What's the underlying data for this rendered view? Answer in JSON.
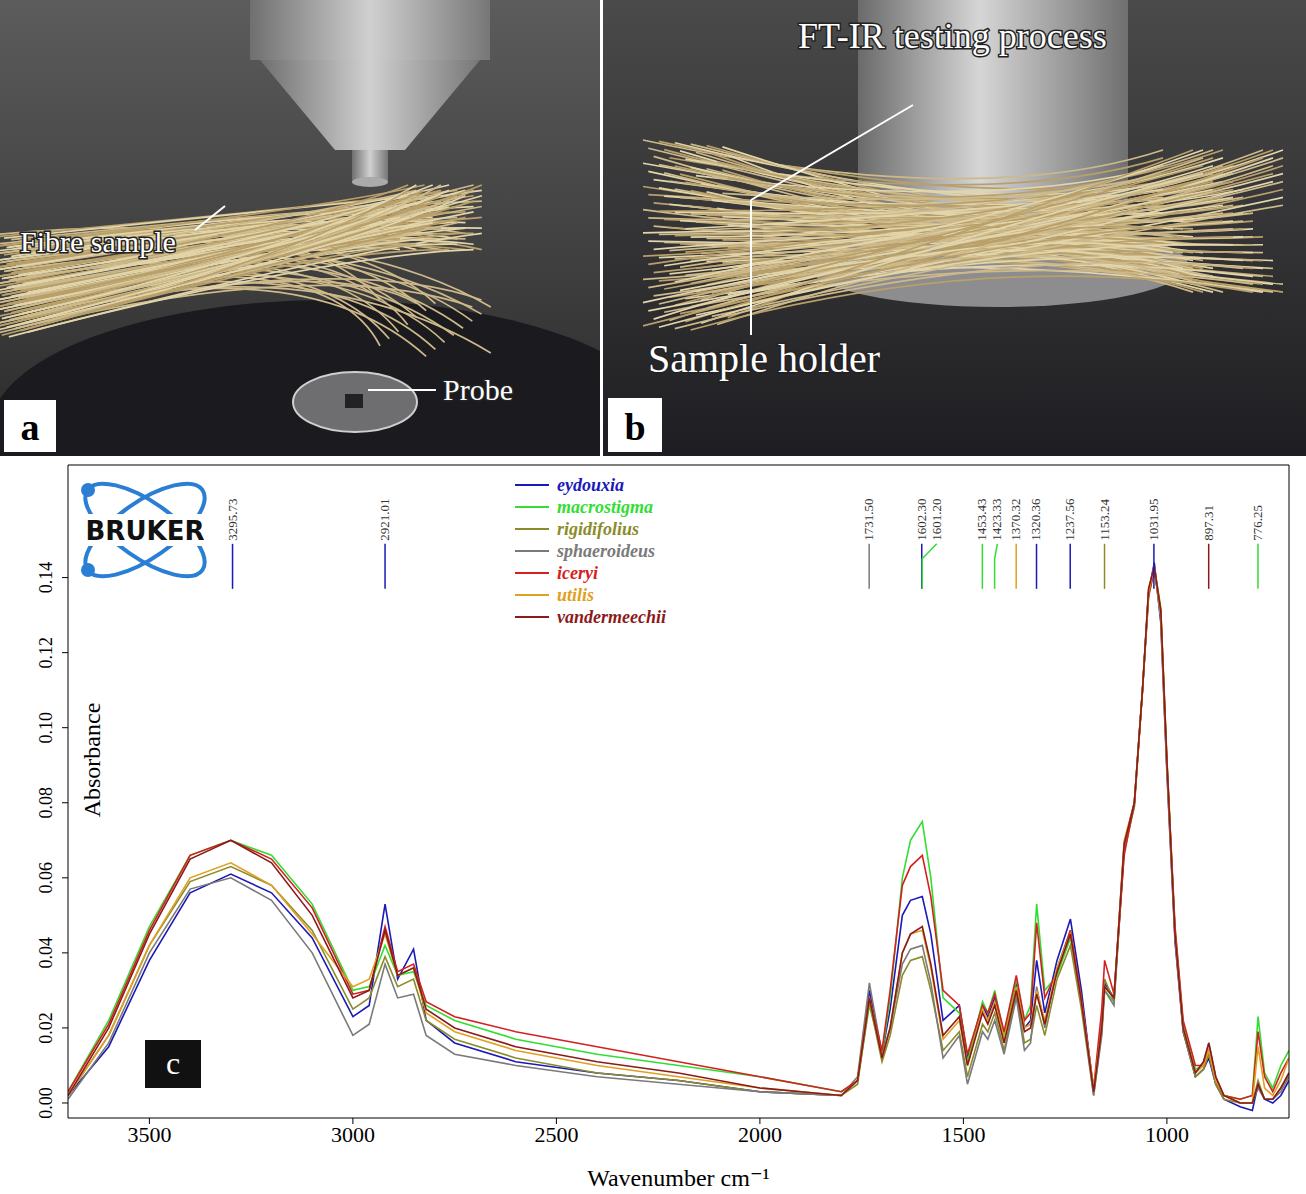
{
  "panels": [
    {
      "letter": "a",
      "labels": [
        "Fibre sample",
        "Probe"
      ]
    },
    {
      "letter": "b",
      "labels": [
        "FT-IR testing process",
        "Sample holder"
      ]
    }
  ],
  "chart_data": {
    "type": "line",
    "panel_letter": "c",
    "logo": "BRUKER",
    "x_label": "Wavenumber cm⁻¹",
    "y_label": "Absorbance",
    "grid": false,
    "legend": "top",
    "xlim": [
      3700,
      700
    ],
    "xticks": [
      3500,
      3000,
      2500,
      2000,
      1500,
      1000
    ],
    "ylim": [
      -0.004,
      0.17
    ],
    "yticks": [
      {
        "value": 0,
        "label": "0.00"
      },
      {
        "value": 0.02,
        "label": "0.02"
      },
      {
        "value": 0.04,
        "label": "0.04"
      },
      {
        "value": 0.06,
        "label": "0.06"
      },
      {
        "value": 0.08,
        "label": "0.08"
      },
      {
        "value": 0.1,
        "label": "0.10"
      },
      {
        "value": 0.12,
        "label": "0.12"
      },
      {
        "value": 0.14,
        "label": "0.14"
      }
    ],
    "x": [
      3700,
      3600,
      3500,
      3400,
      3300,
      3200,
      3100,
      3000,
      2960,
      2921,
      2890,
      2851,
      2820,
      2750,
      2600,
      2400,
      2200,
      2000,
      1800,
      1760,
      1731,
      1700,
      1680,
      1650,
      1630,
      1601,
      1580,
      1550,
      1510,
      1490,
      1453,
      1440,
      1423,
      1400,
      1370,
      1350,
      1335,
      1320,
      1300,
      1270,
      1237,
      1210,
      1180,
      1160,
      1153,
      1130,
      1105,
      1080,
      1060,
      1045,
      1031,
      1015,
      1000,
      980,
      960,
      930,
      910,
      897,
      880,
      860,
      820,
      790,
      776,
      760,
      740,
      720,
      700
    ],
    "series": [
      {
        "name": "eydouxia",
        "color": "#1a1ab8",
        "values": [
          0.002,
          0.015,
          0.038,
          0.056,
          0.061,
          0.056,
          0.044,
          0.023,
          0.026,
          0.053,
          0.033,
          0.041,
          0.022,
          0.016,
          0.011,
          0.008,
          0.006,
          0.003,
          0.002,
          0.006,
          0.03,
          0.013,
          0.025,
          0.05,
          0.054,
          0.055,
          0.045,
          0.022,
          0.026,
          0.012,
          0.026,
          0.023,
          0.028,
          0.018,
          0.032,
          0.02,
          0.022,
          0.038,
          0.024,
          0.038,
          0.049,
          0.03,
          0.003,
          0.021,
          0.032,
          0.028,
          0.069,
          0.08,
          0.11,
          0.136,
          0.144,
          0.128,
          0.088,
          0.043,
          0.019,
          0.007,
          0.009,
          0.012,
          0.005,
          0.001,
          -0.001,
          -0.002,
          0.005,
          0.001,
          0.0,
          0.002,
          0.006
        ]
      },
      {
        "name": "macrostigma",
        "color": "#33dd33",
        "values": [
          0.003,
          0.022,
          0.047,
          0.066,
          0.07,
          0.066,
          0.053,
          0.03,
          0.031,
          0.042,
          0.034,
          0.035,
          0.026,
          0.022,
          0.017,
          0.013,
          0.01,
          0.007,
          0.003,
          0.006,
          0.026,
          0.013,
          0.028,
          0.06,
          0.07,
          0.075,
          0.06,
          0.028,
          0.024,
          0.011,
          0.027,
          0.024,
          0.03,
          0.018,
          0.033,
          0.022,
          0.026,
          0.053,
          0.03,
          0.034,
          0.044,
          0.027,
          0.003,
          0.02,
          0.03,
          0.027,
          0.068,
          0.08,
          0.11,
          0.135,
          0.142,
          0.13,
          0.09,
          0.046,
          0.021,
          0.009,
          0.01,
          0.013,
          0.006,
          0.002,
          0.001,
          0.002,
          0.023,
          0.008,
          0.004,
          0.01,
          0.014
        ]
      },
      {
        "name": "rigidifolius",
        "color": "#8b8b2a",
        "values": [
          0.002,
          0.018,
          0.042,
          0.059,
          0.063,
          0.058,
          0.046,
          0.025,
          0.028,
          0.039,
          0.031,
          0.033,
          0.022,
          0.017,
          0.012,
          0.008,
          0.006,
          0.003,
          0.002,
          0.005,
          0.027,
          0.011,
          0.018,
          0.034,
          0.038,
          0.039,
          0.03,
          0.014,
          0.019,
          0.007,
          0.021,
          0.019,
          0.024,
          0.014,
          0.029,
          0.016,
          0.017,
          0.026,
          0.018,
          0.033,
          0.042,
          0.025,
          0.002,
          0.019,
          0.033,
          0.027,
          0.067,
          0.079,
          0.11,
          0.137,
          0.143,
          0.132,
          0.092,
          0.045,
          0.019,
          0.007,
          0.009,
          0.013,
          0.005,
          0.001,
          0.0,
          0.0,
          0.006,
          0.001,
          0.001,
          0.004,
          0.008
        ]
      },
      {
        "name": "sphaeroideus",
        "color": "#7a7a7a",
        "values": [
          0.001,
          0.016,
          0.04,
          0.057,
          0.06,
          0.054,
          0.04,
          0.018,
          0.021,
          0.037,
          0.028,
          0.029,
          0.018,
          0.013,
          0.01,
          0.007,
          0.005,
          0.003,
          0.002,
          0.007,
          0.032,
          0.013,
          0.02,
          0.037,
          0.041,
          0.042,
          0.032,
          0.012,
          0.018,
          0.005,
          0.019,
          0.017,
          0.022,
          0.013,
          0.028,
          0.014,
          0.016,
          0.031,
          0.02,
          0.036,
          0.046,
          0.027,
          0.002,
          0.018,
          0.03,
          0.026,
          0.068,
          0.079,
          0.11,
          0.136,
          0.143,
          0.129,
          0.089,
          0.044,
          0.019,
          0.008,
          0.011,
          0.016,
          0.007,
          0.002,
          0.0,
          0.0,
          0.004,
          0.001,
          0.001,
          0.003,
          0.007
        ]
      },
      {
        "name": "iceryi",
        "color": "#d42020",
        "values": [
          0.003,
          0.021,
          0.046,
          0.066,
          0.07,
          0.065,
          0.052,
          0.029,
          0.03,
          0.047,
          0.035,
          0.037,
          0.027,
          0.023,
          0.019,
          0.015,
          0.011,
          0.007,
          0.003,
          0.006,
          0.028,
          0.014,
          0.03,
          0.058,
          0.063,
          0.066,
          0.055,
          0.03,
          0.026,
          0.013,
          0.026,
          0.024,
          0.029,
          0.019,
          0.034,
          0.022,
          0.024,
          0.048,
          0.028,
          0.035,
          0.046,
          0.028,
          0.004,
          0.025,
          0.038,
          0.029,
          0.066,
          0.08,
          0.11,
          0.135,
          0.142,
          0.131,
          0.091,
          0.047,
          0.022,
          0.01,
          0.01,
          0.014,
          0.006,
          0.002,
          0.001,
          0.002,
          0.019,
          0.007,
          0.003,
          0.008,
          0.012
        ]
      },
      {
        "name": "utilis",
        "color": "#e0a020",
        "values": [
          0.002,
          0.018,
          0.042,
          0.06,
          0.064,
          0.058,
          0.045,
          0.031,
          0.033,
          0.045,
          0.034,
          0.036,
          0.024,
          0.019,
          0.014,
          0.01,
          0.007,
          0.004,
          0.002,
          0.006,
          0.028,
          0.012,
          0.02,
          0.04,
          0.045,
          0.046,
          0.036,
          0.017,
          0.022,
          0.01,
          0.025,
          0.022,
          0.027,
          0.017,
          0.031,
          0.02,
          0.021,
          0.03,
          0.022,
          0.036,
          0.045,
          0.027,
          0.004,
          0.02,
          0.031,
          0.028,
          0.07,
          0.08,
          0.11,
          0.136,
          0.143,
          0.13,
          0.09,
          0.045,
          0.02,
          0.008,
          0.01,
          0.014,
          0.006,
          0.002,
          0.0,
          0.0,
          0.015,
          0.004,
          0.002,
          0.006,
          0.012
        ]
      },
      {
        "name": "vandermeechii",
        "color": "#8b1a1a",
        "values": [
          0.002,
          0.02,
          0.045,
          0.065,
          0.07,
          0.064,
          0.05,
          0.028,
          0.03,
          0.046,
          0.034,
          0.036,
          0.025,
          0.02,
          0.015,
          0.011,
          0.008,
          0.004,
          0.002,
          0.006,
          0.028,
          0.012,
          0.02,
          0.04,
          0.045,
          0.047,
          0.037,
          0.018,
          0.023,
          0.01,
          0.024,
          0.021,
          0.026,
          0.016,
          0.03,
          0.019,
          0.02,
          0.029,
          0.021,
          0.035,
          0.045,
          0.027,
          0.003,
          0.02,
          0.031,
          0.028,
          0.069,
          0.08,
          0.11,
          0.137,
          0.143,
          0.131,
          0.091,
          0.045,
          0.02,
          0.008,
          0.011,
          0.016,
          0.007,
          0.002,
          0.0,
          0.0,
          0.005,
          0.001,
          0.001,
          0.004,
          0.008
        ]
      }
    ],
    "peak_annotations": [
      {
        "value": 3295.73,
        "label": "3295.73",
        "color": "#1a1ab8"
      },
      {
        "value": 2921.01,
        "label": "2921.01",
        "color": "#1a1ab8"
      },
      {
        "value": 1731.5,
        "label": "1731.50",
        "color": "#7a7a7a"
      },
      {
        "value": 1602.3,
        "label": "1602.30",
        "color": "#1a1ab8"
      },
      {
        "value": 1601.2,
        "label": "1601.20",
        "color": "#33dd33"
      },
      {
        "value": 1453.43,
        "label": "1453.43",
        "color": "#33dd33"
      },
      {
        "value": 1423.33,
        "label": "1423.33",
        "color": "#33dd33"
      },
      {
        "value": 1370.32,
        "label": "1370.32",
        "color": "#e0a020"
      },
      {
        "value": 1320.36,
        "label": "1320.36",
        "color": "#1a1ab8"
      },
      {
        "value": 1237.56,
        "label": "1237.56",
        "color": "#1a1ab8"
      },
      {
        "value": 1153.24,
        "label": "1153.24",
        "color": "#8b8b2a"
      },
      {
        "value": 1031.95,
        "label": "1031.95",
        "color": "#1a1ab8"
      },
      {
        "value": 897.31,
        "label": "897.31",
        "color": "#8b1a1a"
      },
      {
        "value": 776.25,
        "label": "776.25",
        "color": "#33dd33"
      }
    ]
  }
}
